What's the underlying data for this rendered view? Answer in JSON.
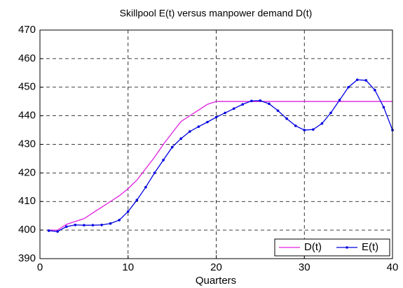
{
  "chart_data": {
    "type": "line",
    "title": "Skillpool E(t) versus manpower demand D(t)",
    "x_label": "Quarters",
    "x": [
      1,
      2,
      3,
      4,
      5,
      6,
      7,
      8,
      9,
      10,
      11,
      12,
      13,
      14,
      15,
      16,
      17,
      18,
      19,
      20,
      21,
      22,
      23,
      24,
      25,
      26,
      27,
      28,
      29,
      30,
      31,
      32,
      33,
      34,
      35,
      36,
      37,
      38,
      39,
      40
    ],
    "series": [
      {
        "name": "D(t)",
        "color": "#e020e0",
        "values": [
          400,
          400,
          402,
          403,
          404,
          406,
          408,
          410,
          412,
          414.5,
          417.5,
          421.5,
          425.5,
          430,
          434,
          438,
          440,
          442,
          444,
          445,
          445,
          445,
          445,
          445,
          445,
          445,
          445,
          445,
          445,
          445,
          445,
          445,
          445,
          445,
          445,
          445,
          445,
          445,
          445,
          445
        ]
      },
      {
        "name": "E(t)",
        "color": "#0000e0",
        "marker": ".",
        "values": [
          399.8,
          399.5,
          401.2,
          401.8,
          401.7,
          401.7,
          401.8,
          402.3,
          403.5,
          406.5,
          410.5,
          415,
          420,
          424.5,
          429,
          432,
          434.5,
          436.2,
          437.8,
          439.5,
          441,
          442.5,
          444,
          445.2,
          445.3,
          444.2,
          441.8,
          439,
          436.5,
          435,
          435.2,
          437.3,
          441,
          445.5,
          450,
          452.6,
          452.4,
          449,
          443,
          435
        ]
      }
    ],
    "xlim": [
      0,
      40
    ],
    "xticks": [
      0,
      10,
      20,
      30,
      40
    ],
    "ylim": [
      390,
      470
    ],
    "yticks": [
      390,
      400,
      410,
      420,
      430,
      440,
      450,
      460,
      470
    ],
    "grid": true,
    "legend": "lower right"
  }
}
